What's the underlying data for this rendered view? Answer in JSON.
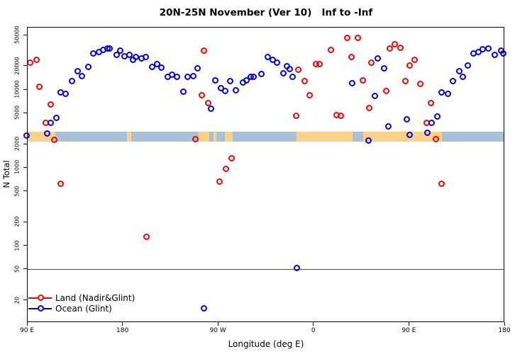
{
  "chart_data": {
    "type": "scatter",
    "title": "20N-25N November (Ver 10)   Inf to -Inf",
    "xlabel": "Longitude (deg E)",
    "ylabel": "N Total",
    "x_axis": {
      "min": 90,
      "max": 540,
      "ticks": [
        {
          "pos": 90,
          "label": "90 E"
        },
        {
          "pos": 180,
          "label": "180"
        },
        {
          "pos": 270,
          "label": "90 W"
        },
        {
          "pos": 360,
          "label": "0"
        },
        {
          "pos": 450,
          "label": "90 E"
        },
        {
          "pos": 540,
          "label": "180"
        }
      ]
    },
    "y_axis": {
      "scale": "log",
      "min": 10.4,
      "max": 63000,
      "ticks": [
        50000,
        20000,
        10000,
        5000,
        2000,
        1000,
        500,
        200,
        100,
        50,
        20
      ]
    },
    "reference_line_y": 50,
    "map_band": {
      "n_top": 2870,
      "n_bottom": 2150,
      "ocean_color": "#a9c0da",
      "land_color": "#fbd088",
      "land_segments_deg": [
        [
          90,
          116.5
        ],
        [
          184,
          188
        ],
        [
          251.5,
          262
        ],
        [
          266,
          268.5
        ],
        [
          276.5,
          284
        ],
        [
          344,
          397
        ],
        [
          407,
          481
        ]
      ]
    },
    "series": [
      {
        "name": "Land (Nadir&Glint)",
        "color": "#ff0000",
        "points": [
          [
            93,
            21900
          ],
          [
            99,
            23500
          ],
          [
            102,
            10800
          ],
          [
            113,
            6300
          ],
          [
            108,
            3650
          ],
          [
            116,
            2250
          ],
          [
            122,
            610
          ],
          [
            203,
            128
          ],
          [
            257,
            31300
          ],
          [
            255,
            8300
          ],
          [
            261,
            6650
          ],
          [
            249,
            2270
          ],
          [
            283,
            1310
          ],
          [
            278,
            950
          ],
          [
            272,
            650
          ],
          [
            346,
            17700
          ],
          [
            352,
            12700
          ],
          [
            357,
            8250
          ],
          [
            344,
            4500
          ],
          [
            363,
            21000
          ],
          [
            366,
            21000
          ],
          [
            377,
            31800
          ],
          [
            392,
            44900
          ],
          [
            402,
            44900
          ],
          [
            396,
            25500
          ],
          [
            407,
            13000
          ],
          [
            415,
            21900
          ],
          [
            382,
            4600
          ],
          [
            386,
            4500
          ],
          [
            413,
            5680
          ],
          [
            429,
            9350
          ],
          [
            432,
            33300
          ],
          [
            437,
            37700
          ],
          [
            442,
            33800
          ],
          [
            447,
            12700
          ],
          [
            451,
            20000
          ],
          [
            456,
            23500
          ],
          [
            461,
            11600
          ],
          [
            467,
            3650
          ],
          [
            471,
            6550
          ],
          [
            476,
            2300
          ],
          [
            481,
            610
          ]
        ]
      },
      {
        "name": "Ocean (Glint)",
        "color": "#0000ee",
        "points": [
          [
            90,
            2550
          ],
          [
            109,
            2720
          ],
          [
            113,
            3700
          ],
          [
            118,
            4270
          ],
          [
            122,
            9050
          ],
          [
            127,
            8600
          ],
          [
            133,
            12700
          ],
          [
            138,
            16800
          ],
          [
            142,
            14500
          ],
          [
            148,
            19100
          ],
          [
            153,
            28300
          ],
          [
            158,
            29700
          ],
          [
            162,
            31800
          ],
          [
            166,
            33300
          ],
          [
            168,
            32900
          ],
          [
            175,
            27100
          ],
          [
            178,
            30800
          ],
          [
            182,
            26100
          ],
          [
            187,
            27500
          ],
          [
            190,
            23800
          ],
          [
            193,
            25900
          ],
          [
            198,
            24700
          ],
          [
            202,
            25900
          ],
          [
            208,
            19300
          ],
          [
            213,
            21000
          ],
          [
            217,
            18700
          ],
          [
            223,
            14400
          ],
          [
            227,
            15300
          ],
          [
            232,
            14400
          ],
          [
            238,
            9250
          ],
          [
            242,
            14200
          ],
          [
            247,
            14700
          ],
          [
            251,
            18300
          ],
          [
            257,
            15.6
          ],
          [
            264,
            5560
          ],
          [
            268,
            13000
          ],
          [
            273,
            10300
          ],
          [
            277,
            9450
          ],
          [
            282,
            12700
          ],
          [
            287,
            9650
          ],
          [
            294,
            12200
          ],
          [
            297,
            13000
          ],
          [
            301,
            14200
          ],
          [
            304,
            14400
          ],
          [
            311,
            15600
          ],
          [
            317,
            25900
          ],
          [
            322,
            23500
          ],
          [
            326,
            21700
          ],
          [
            332,
            15800
          ],
          [
            335,
            19700
          ],
          [
            338,
            18000
          ],
          [
            341,
            14200
          ],
          [
            345,
            51.5
          ],
          [
            397,
            11800
          ],
          [
            412,
            2190
          ],
          [
            418,
            8200
          ],
          [
            421,
            24700
          ],
          [
            427,
            18300
          ],
          [
            431,
            3310
          ],
          [
            448,
            4110
          ],
          [
            451,
            2590
          ],
          [
            468,
            2780
          ],
          [
            472,
            3720
          ],
          [
            477,
            4430
          ],
          [
            481,
            9100
          ],
          [
            487,
            8700
          ],
          [
            492,
            12600
          ],
          [
            498,
            16800
          ],
          [
            501,
            14200
          ],
          [
            506,
            20000
          ],
          [
            511,
            28300
          ],
          [
            516,
            30000
          ],
          [
            520,
            32400
          ],
          [
            525,
            32900
          ],
          [
            531,
            27500
          ],
          [
            537,
            31100
          ],
          [
            539.5,
            28700
          ]
        ]
      }
    ]
  }
}
